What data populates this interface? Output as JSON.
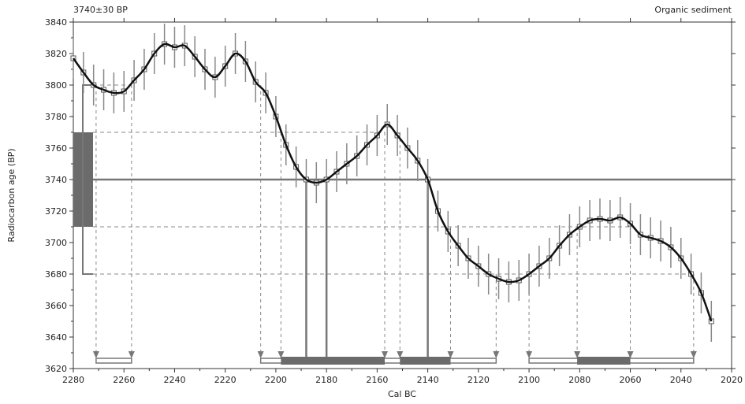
{
  "chart_data": {
    "type": "line",
    "title_left": "3740±30 BP",
    "title_right": "Organic sediment",
    "xlabel": "Cal BC",
    "ylabel": "Radiocarbon age (BP)",
    "xlim": [
      2280,
      2020
    ],
    "ylim": [
      3620,
      3840
    ],
    "x_ticks": [
      2280,
      2260,
      2240,
      2220,
      2200,
      2180,
      2160,
      2140,
      2120,
      2100,
      2080,
      2060,
      2040,
      2020
    ],
    "y_ticks": [
      3620,
      3640,
      3660,
      3680,
      3700,
      3720,
      3740,
      3760,
      3780,
      3800,
      3820,
      3840
    ],
    "grid": false,
    "sample": {
      "age_bp": 3740,
      "error": 30
    },
    "calibration_curve": {
      "x": [
        2280,
        2276,
        2272,
        2268,
        2264,
        2260,
        2256,
        2252,
        2248,
        2244,
        2240,
        2236,
        2232,
        2228,
        2224,
        2220,
        2216,
        2212,
        2208,
        2204,
        2200,
        2196,
        2192,
        2188,
        2184,
        2180,
        2176,
        2172,
        2168,
        2164,
        2160,
        2156,
        2152,
        2148,
        2144,
        2140,
        2136,
        2132,
        2128,
        2124,
        2120,
        2116,
        2112,
        2108,
        2104,
        2100,
        2096,
        2092,
        2088,
        2084,
        2080,
        2076,
        2072,
        2068,
        2064,
        2060,
        2056,
        2052,
        2048,
        2044,
        2040,
        2036,
        2032,
        2028
      ],
      "y": [
        3817,
        3808,
        3800,
        3797,
        3795,
        3796,
        3803,
        3810,
        3820,
        3826,
        3824,
        3825,
        3818,
        3810,
        3805,
        3812,
        3820,
        3815,
        3802,
        3795,
        3780,
        3762,
        3748,
        3740,
        3738,
        3740,
        3745,
        3750,
        3755,
        3762,
        3768,
        3775,
        3768,
        3760,
        3752,
        3740,
        3720,
        3707,
        3698,
        3690,
        3685,
        3680,
        3677,
        3675,
        3676,
        3680,
        3685,
        3690,
        3698,
        3705,
        3710,
        3714,
        3715,
        3714,
        3716,
        3712,
        3705,
        3703,
        3701,
        3697,
        3690,
        3680,
        3668,
        3650
      ]
    },
    "intercepts": {
      "upper_1sigma": 3770,
      "lower_1sigma": 3710,
      "upper_2sigma": 3800,
      "lower_2sigma": 3680,
      "calendar_markers": [
        2271,
        2257,
        2206,
        2198,
        2157,
        2151,
        2131,
        2113,
        2100,
        2081,
        2060,
        2035
      ],
      "range_1sigma": [
        [
          2198,
          2157
        ],
        [
          2151,
          2131
        ],
        [
          2081,
          2060
        ]
      ],
      "range_2sigma": [
        [
          2271,
          2257
        ],
        [
          2206,
          2113
        ],
        [
          2100,
          2035
        ]
      ],
      "median_lines": [
        2188,
        2180,
        2140
      ]
    }
  }
}
